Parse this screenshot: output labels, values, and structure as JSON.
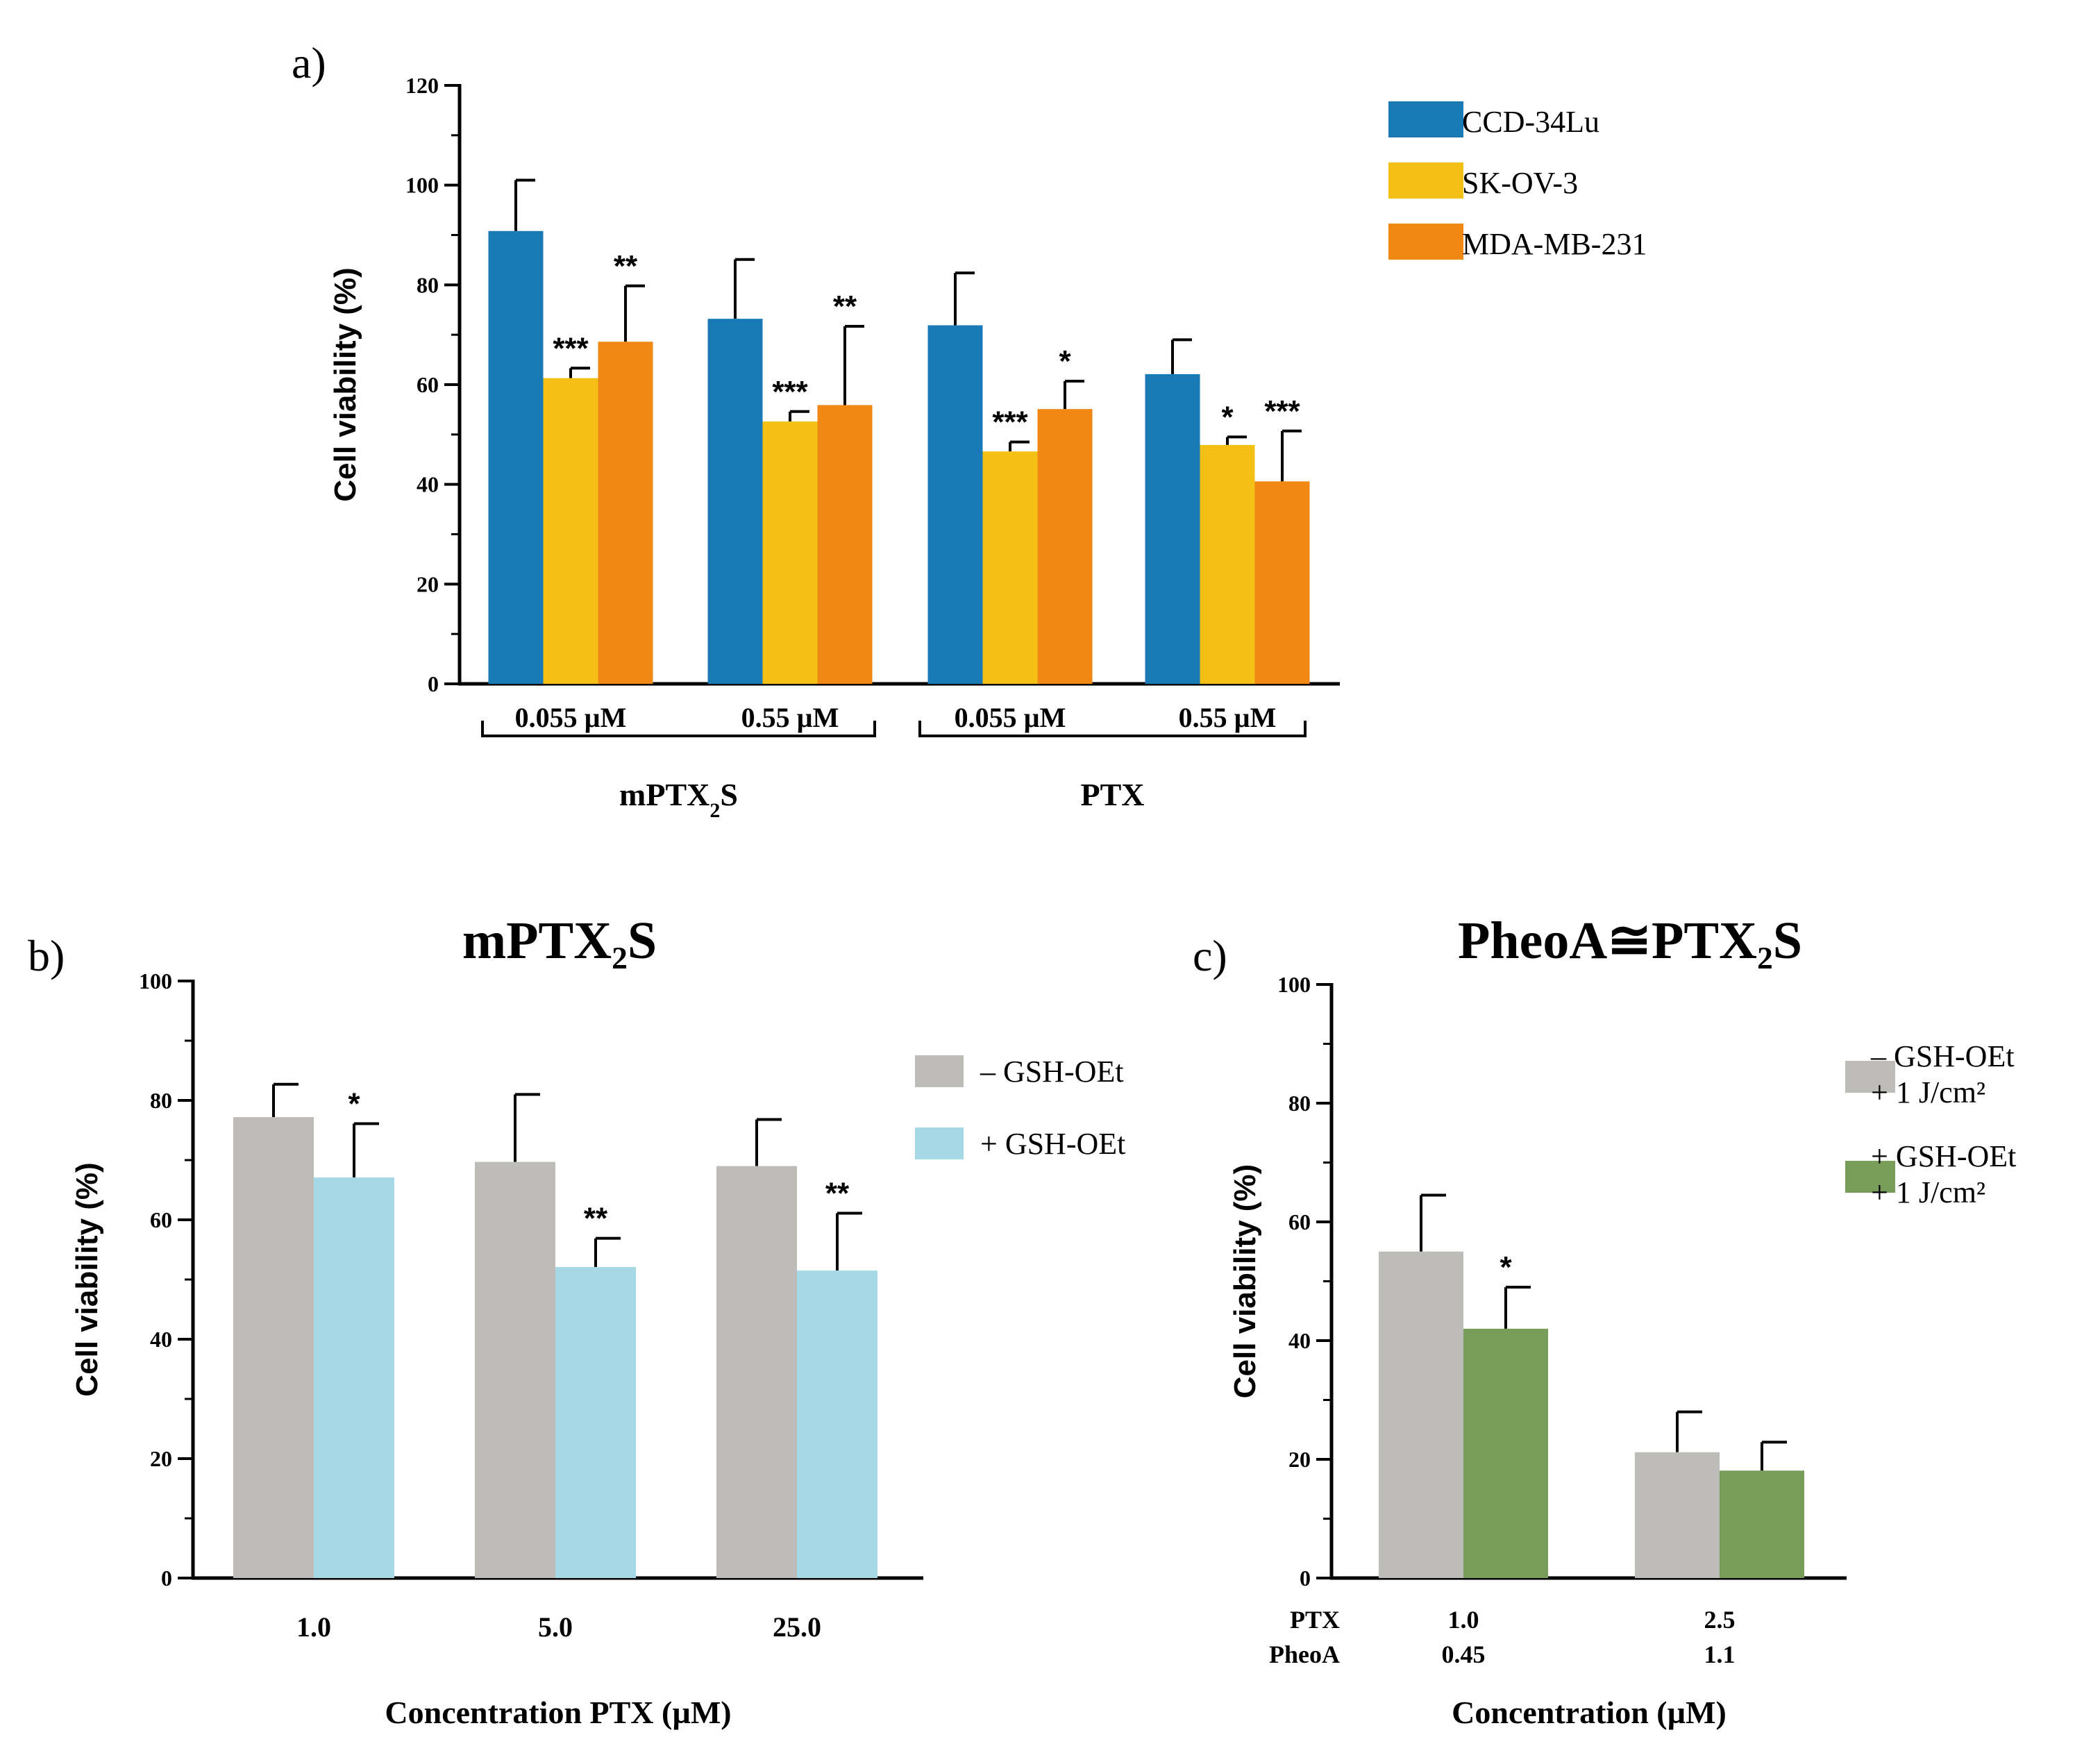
{
  "chart_data": [
    {
      "panel": "a)",
      "type": "bar",
      "title": "",
      "ylabel": "Cell viability (%)",
      "ylim": [
        0,
        120
      ],
      "yticks": [
        0,
        20,
        40,
        60,
        80,
        100,
        120
      ],
      "categories": [
        "0.055 µM",
        "0.55 µM",
        "0.055 µM",
        "0.55 µM"
      ],
      "groups": [
        {
          "label": "mPTX",
          "sub": "2",
          "suffix": "S",
          "span": [
            0,
            1
          ]
        },
        {
          "label": "PTX",
          "sub": "",
          "suffix": "",
          "span": [
            2,
            3
          ]
        }
      ],
      "series": [
        {
          "name": "CCD-34Lu",
          "color": "#1a7ab5",
          "values": [
            90.8,
            73.2,
            71.9,
            62.1
          ],
          "errors": [
            10.2,
            11.9,
            10.5,
            6.9
          ],
          "stars": [
            "",
            "",
            "",
            ""
          ]
        },
        {
          "name": "SK-OV-3",
          "color": "#f5c015",
          "values": [
            61.3,
            52.6,
            46.6,
            47.9
          ],
          "errors": [
            2.0,
            2.0,
            1.9,
            1.6
          ],
          "stars": [
            "***",
            "***",
            "***",
            "*"
          ]
        },
        {
          "name": "MDA-MB-231",
          "color": "#f08814",
          "values": [
            68.6,
            55.9,
            55.1,
            40.6
          ],
          "errors": [
            11.2,
            15.8,
            5.6,
            10.1
          ],
          "stars": [
            "**",
            "**",
            "*",
            "***"
          ]
        }
      ]
    },
    {
      "panel": "b)",
      "type": "bar",
      "title": "mPTX₂S",
      "ylabel": "Cell viability (%)",
      "xlabel": "Concentration PTX (µM)",
      "ylim": [
        0,
        100
      ],
      "yticks": [
        0,
        20,
        40,
        60,
        80,
        100
      ],
      "categories": [
        "1.0",
        "5.0",
        "25.0"
      ],
      "series": [
        {
          "name": "– GSH-OEt",
          "name2": "",
          "color": "#bdbcb9",
          "values": [
            77.2,
            69.7,
            69.0
          ],
          "errors": [
            5.5,
            11.3,
            7.8
          ],
          "stars": [
            "",
            "",
            ""
          ]
        },
        {
          "name": "+ GSH-OEt",
          "name2": "",
          "color": "#a6d8e6",
          "values": [
            67.1,
            52.1,
            51.5
          ],
          "errors": [
            9.0,
            4.8,
            9.6
          ],
          "stars": [
            "*",
            "**",
            "**"
          ]
        }
      ]
    },
    {
      "panel": "c)",
      "type": "bar",
      "title": "PheoA≅PTX₂S",
      "ylabel": "Cell viability (%)",
      "xlabel": "Concentration (µM)",
      "ylim": [
        0,
        100
      ],
      "yticks": [
        0,
        20,
        40,
        60,
        80,
        100
      ],
      "row_labels": [
        "PTX",
        "PheoA"
      ],
      "categories": [
        [
          "1.0",
          "0.45"
        ],
        [
          "2.5",
          "1.1"
        ]
      ],
      "series": [
        {
          "name": "– GSH-OEt",
          "name2": "+ 1 J/cm²",
          "color": "#bdbcb9",
          "values": [
            55.0,
            21.2
          ],
          "errors": [
            9.5,
            6.8
          ],
          "stars": [
            "",
            ""
          ]
        },
        {
          "name": "+ GSH-OEt",
          "name2": "+ 1 J/cm²",
          "color": "#789c59",
          "values": [
            42.0,
            18.1
          ],
          "errors": [
            7.0,
            4.8
          ],
          "stars": [
            "*",
            ""
          ]
        }
      ]
    }
  ]
}
